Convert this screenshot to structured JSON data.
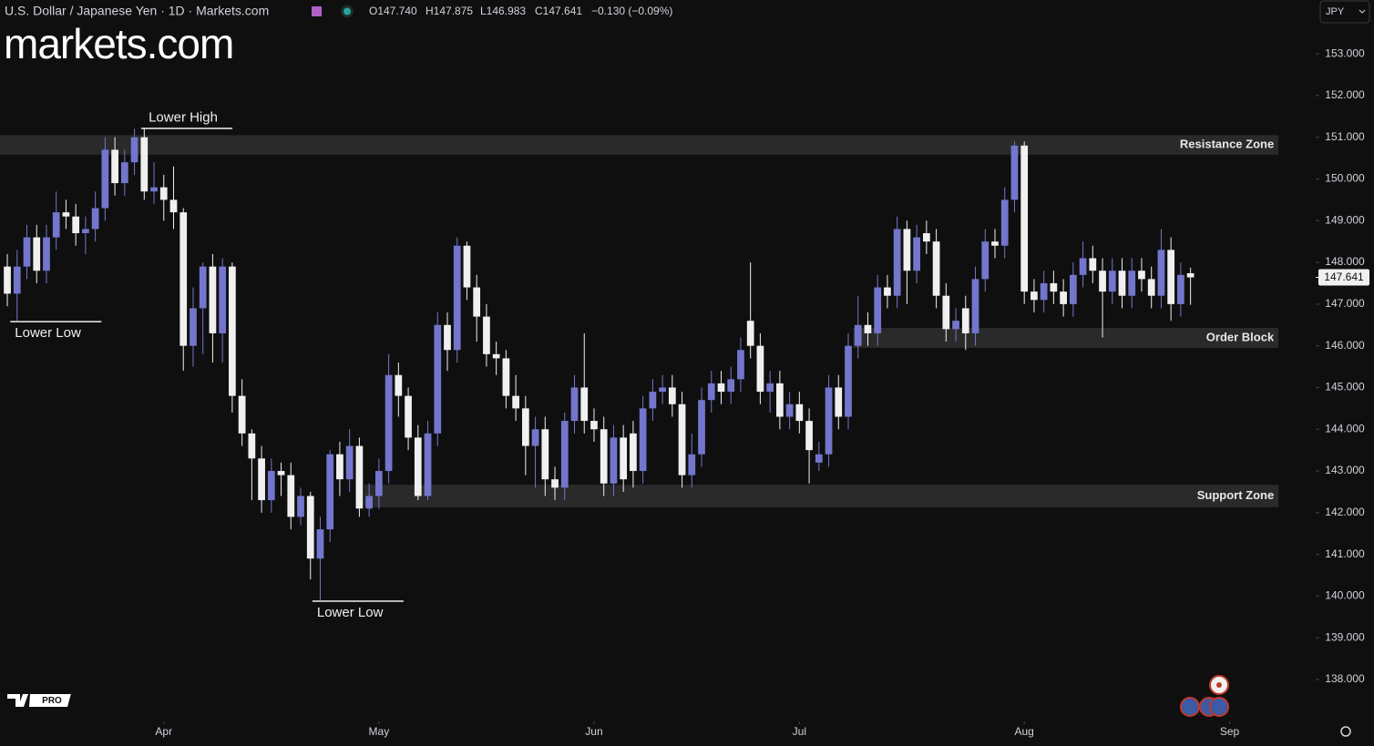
{
  "header": {
    "symbol": "U.S. Dollar / Japanese Yen · 1D · Markets.com",
    "open": "O147.740",
    "high": "H147.875",
    "low": "L146.983",
    "close": "C147.641",
    "change": "−0.130 (−0.09%)",
    "currency": "JPY",
    "logo": "markets.com",
    "badge": "PRO"
  },
  "chart_data": {
    "type": "candlestick",
    "open": [
      147.9,
      147.25,
      147.9,
      148.6,
      147.8,
      148.6,
      149.2,
      149.1,
      148.7,
      148.8,
      149.3,
      150.7,
      149.9,
      150.4,
      151.0,
      149.7,
      149.8,
      149.5,
      149.2,
      146.0,
      146.9,
      147.9,
      146.3,
      147.9,
      144.8,
      143.9,
      143.3,
      142.3,
      143.0,
      142.9,
      141.9,
      142.4,
      140.9,
      141.6,
      143.4,
      142.8,
      143.6,
      142.1,
      142.4,
      143.0,
      145.3,
      144.8,
      143.8,
      142.4,
      143.9,
      146.5,
      145.9,
      148.4,
      147.4,
      146.7,
      145.8,
      145.7,
      144.8,
      144.5,
      143.6,
      144.0,
      142.8,
      142.6,
      144.2,
      145.0,
      144.2,
      144.0,
      142.7,
      143.8,
      143.9,
      143.0,
      144.5,
      144.9,
      145.0,
      144.6,
      142.9,
      143.4,
      144.7,
      145.1,
      144.9,
      145.2,
      146.6,
      146.0,
      144.9,
      145.1,
      144.3,
      144.6,
      144.2,
      143.2,
      143.4,
      145.0,
      144.3,
      146.0,
      146.5,
      146.3,
      147.4,
      147.2,
      148.8,
      147.8,
      148.7,
      148.5,
      147.2,
      146.4,
      146.9,
      146.3,
      147.6,
      148.5,
      148.4,
      149.5,
      150.8,
      147.3,
      147.1,
      147.5,
      147.3,
      147.0,
      147.7,
      148.1,
      147.8,
      147.3,
      147.8,
      147.2,
      147.8,
      147.6,
      147.2,
      148.3,
      147.0,
      147.74
    ],
    "high": [
      148.2,
      148.3,
      148.9,
      148.9,
      148.9,
      149.7,
      149.5,
      149.4,
      149.1,
      149.7,
      151.0,
      151.0,
      150.7,
      151.2,
      151.2,
      150.4,
      150.1,
      150.3,
      149.3,
      147.4,
      148.0,
      148.2,
      148.1,
      148.0,
      145.2,
      144.0,
      143.6,
      143.3,
      143.2,
      143.2,
      142.6,
      142.5,
      141.9,
      143.5,
      143.7,
      144.0,
      143.8,
      142.7,
      143.3,
      145.8,
      145.6,
      145.0,
      144.1,
      144.2,
      146.8,
      146.8,
      148.6,
      148.5,
      147.7,
      147.0,
      146.1,
      145.9,
      145.3,
      144.8,
      144.3,
      144.3,
      143.1,
      144.4,
      145.3,
      146.3,
      144.5,
      144.3,
      144.1,
      144.1,
      144.2,
      144.8,
      145.2,
      145.3,
      145.3,
      144.9,
      143.9,
      145.0,
      145.4,
      145.4,
      145.5,
      146.2,
      148.0,
      146.3,
      145.4,
      145.4,
      144.9,
      144.9,
      144.5,
      143.7,
      145.3,
      145.3,
      146.3,
      147.2,
      146.8,
      147.7,
      147.7,
      149.1,
      149.0,
      148.9,
      149.0,
      148.8,
      147.5,
      146.9,
      147.2,
      147.9,
      148.8,
      148.8,
      149.8,
      150.9,
      150.9,
      147.6,
      147.8,
      147.8,
      147.6,
      148.0,
      148.5,
      148.4,
      148.1,
      148.1,
      148.1,
      148.1,
      148.1,
      147.9,
      148.8,
      148.6,
      148.0,
      147.875
    ],
    "low": [
      146.95,
      146.6,
      147.6,
      147.5,
      147.5,
      148.3,
      148.8,
      148.4,
      148.2,
      148.5,
      149.0,
      149.6,
      149.6,
      150.1,
      149.5,
      149.4,
      149.0,
      148.8,
      145.4,
      145.5,
      145.8,
      145.6,
      145.6,
      144.4,
      143.6,
      142.3,
      142.0,
      142.0,
      142.4,
      141.6,
      141.7,
      140.4,
      139.9,
      141.3,
      142.4,
      142.5,
      141.9,
      141.9,
      142.1,
      142.7,
      144.3,
      143.5,
      142.3,
      142.3,
      143.6,
      145.4,
      145.6,
      147.1,
      146.1,
      145.5,
      145.3,
      144.5,
      144.2,
      142.9,
      142.6,
      142.4,
      142.3,
      142.3,
      143.9,
      143.9,
      143.7,
      142.4,
      142.4,
      142.5,
      142.6,
      142.7,
      144.2,
      144.6,
      144.3,
      142.6,
      142.6,
      143.1,
      144.4,
      144.6,
      144.6,
      144.9,
      145.7,
      144.6,
      144.4,
      144.0,
      144.0,
      143.9,
      142.7,
      143.0,
      143.1,
      144.0,
      144.0,
      145.7,
      146.0,
      146.0,
      146.9,
      146.9,
      147.0,
      147.5,
      148.2,
      146.9,
      146.1,
      146.1,
      145.9,
      146.0,
      147.3,
      148.1,
      148.1,
      149.2,
      147.0,
      146.8,
      146.8,
      147.0,
      146.7,
      146.7,
      147.4,
      147.5,
      146.2,
      147.0,
      146.9,
      146.9,
      147.3,
      146.9,
      146.9,
      146.6,
      146.7,
      146.983
    ],
    "close": [
      147.25,
      147.9,
      148.6,
      147.8,
      148.6,
      149.2,
      149.1,
      148.7,
      148.8,
      149.3,
      150.7,
      149.9,
      150.4,
      151.0,
      149.7,
      149.8,
      149.5,
      149.2,
      146.0,
      146.9,
      147.9,
      146.3,
      147.9,
      144.8,
      143.9,
      143.3,
      142.3,
      143.0,
      142.9,
      141.9,
      142.4,
      140.9,
      141.6,
      143.4,
      142.8,
      143.6,
      142.1,
      142.4,
      143.0,
      145.3,
      144.8,
      143.8,
      142.4,
      143.9,
      146.5,
      145.9,
      148.4,
      147.4,
      146.7,
      145.8,
      145.7,
      144.8,
      144.5,
      143.6,
      144.0,
      142.8,
      142.6,
      144.2,
      145.0,
      144.2,
      144.0,
      142.7,
      143.8,
      142.8,
      143.0,
      144.5,
      144.9,
      145.0,
      144.6,
      142.9,
      143.4,
      144.7,
      145.1,
      144.9,
      145.2,
      145.9,
      146.0,
      144.9,
      145.1,
      144.3,
      144.6,
      144.2,
      143.5,
      143.4,
      145.0,
      144.3,
      146.0,
      146.5,
      146.3,
      147.4,
      147.2,
      148.8,
      147.8,
      148.6,
      148.5,
      147.2,
      146.4,
      146.6,
      146.3,
      147.6,
      148.5,
      148.4,
      149.5,
      150.8,
      147.3,
      147.1,
      147.5,
      147.3,
      147.0,
      147.7,
      148.1,
      147.8,
      147.3,
      147.8,
      147.2,
      147.8,
      147.6,
      147.2,
      148.3,
      147.0,
      147.7,
      147.641
    ],
    "up_color": "#7376cc",
    "down_color": "#f0f0f0",
    "xlim": [
      -0.75,
      133.8
    ],
    "xticks": [
      {
        "value": 16,
        "label": "Apr"
      },
      {
        "value": 38,
        "label": "May"
      },
      {
        "value": 60,
        "label": "Jun"
      },
      {
        "value": 81,
        "label": "Jul"
      },
      {
        "value": 104,
        "label": "Aug"
      },
      {
        "value": 125,
        "label": "Sep"
      }
    ],
    "ylim": [
      137.04,
      154.29
    ],
    "yticks": [
      {
        "value": 138,
        "label": "138.000"
      },
      {
        "value": 139,
        "label": "139.000"
      },
      {
        "value": 140,
        "label": "140.000"
      },
      {
        "value": 141,
        "label": "141.000"
      },
      {
        "value": 142,
        "label": "142.000"
      },
      {
        "value": 143,
        "label": "143.000"
      },
      {
        "value": 144,
        "label": "144.000"
      },
      {
        "value": 145,
        "label": "145.000"
      },
      {
        "value": 146,
        "label": "146.000"
      },
      {
        "value": 147,
        "label": "147.000"
      },
      {
        "value": 148,
        "label": "148.000"
      },
      {
        "value": 149,
        "label": "149.000"
      },
      {
        "value": 150,
        "label": "150.000"
      },
      {
        "value": 151,
        "label": "151.000"
      },
      {
        "value": 152,
        "label": "152.000"
      },
      {
        "value": 153,
        "label": "153.000"
      }
    ],
    "zones": [
      {
        "label": "Resistance Zone",
        "range": [
          150.58,
          151.05
        ],
        "from": -0.75,
        "to": 130
      },
      {
        "label": "Order Block",
        "range": [
          145.95,
          146.43
        ],
        "from": 86.5,
        "to": 130
      },
      {
        "label": "Support Zone",
        "range": [
          142.13,
          142.67
        ],
        "from": 36.5,
        "to": 130
      }
    ],
    "annotations": [
      {
        "text": "Lower High",
        "x": 13.7,
        "y": 151.2,
        "side": "above"
      },
      {
        "text": "Lower Low",
        "x": 0.3,
        "y": 146.6,
        "side": "below"
      },
      {
        "text": "Lower Low",
        "x": 31.2,
        "y": 139.9,
        "side": "below"
      }
    ]
  }
}
